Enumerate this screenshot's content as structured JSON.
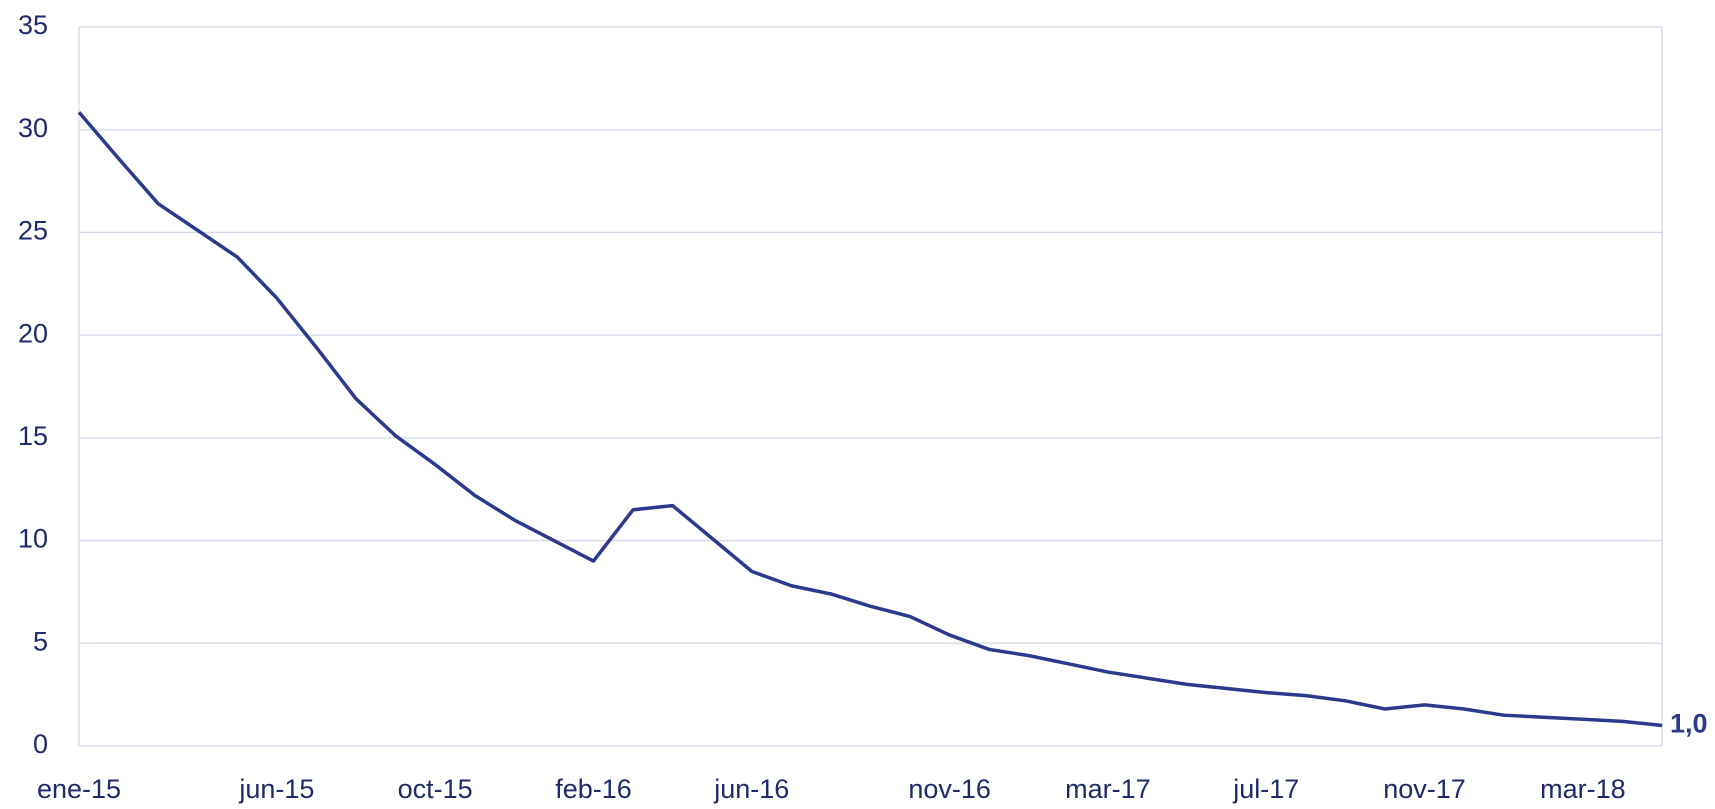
{
  "chart_data": {
    "type": "line",
    "categories": [
      "ene-15",
      null,
      null,
      null,
      null,
      "jun-15",
      null,
      null,
      null,
      "oct-15",
      null,
      null,
      null,
      "feb-16",
      null,
      null,
      null,
      "jun-16",
      null,
      null,
      null,
      null,
      "nov-16",
      null,
      null,
      null,
      "mar-17",
      null,
      null,
      null,
      "jul-17",
      null,
      null,
      null,
      "nov-17",
      null,
      null,
      null,
      "mar-18",
      null,
      null
    ],
    "series": [
      {
        "color": "#2b3a8c",
        "values": [
          30.85,
          28.6,
          26.4,
          25.1,
          23.8,
          21.8,
          19.4,
          16.9,
          15.1,
          13.7,
          12.2,
          11.0,
          10.0,
          9.0,
          11.5,
          11.7,
          10.1,
          8.5,
          7.8,
          7.4,
          6.8,
          6.3,
          5.4,
          4.7,
          4.4,
          4.0,
          3.6,
          3.3,
          3.0,
          2.8,
          2.6,
          2.45,
          2.2,
          1.8,
          2.0,
          1.8,
          1.5,
          1.4,
          1.3,
          1.2,
          1.0
        ],
        "value_labels": [
          null,
          null,
          null,
          null,
          null,
          null,
          null,
          null,
          null,
          null,
          null,
          null,
          null,
          null,
          null,
          null,
          null,
          null,
          null,
          null,
          null,
          null,
          null,
          null,
          null,
          null,
          null,
          null,
          null,
          null,
          null,
          null,
          null,
          null,
          null,
          null,
          null,
          null,
          null,
          null,
          "1,0"
        ]
      }
    ],
    "ylim": [
      0,
      35
    ],
    "yticks": [
      0,
      5,
      10,
      15,
      20,
      25,
      30,
      35
    ],
    "grid": true
  }
}
